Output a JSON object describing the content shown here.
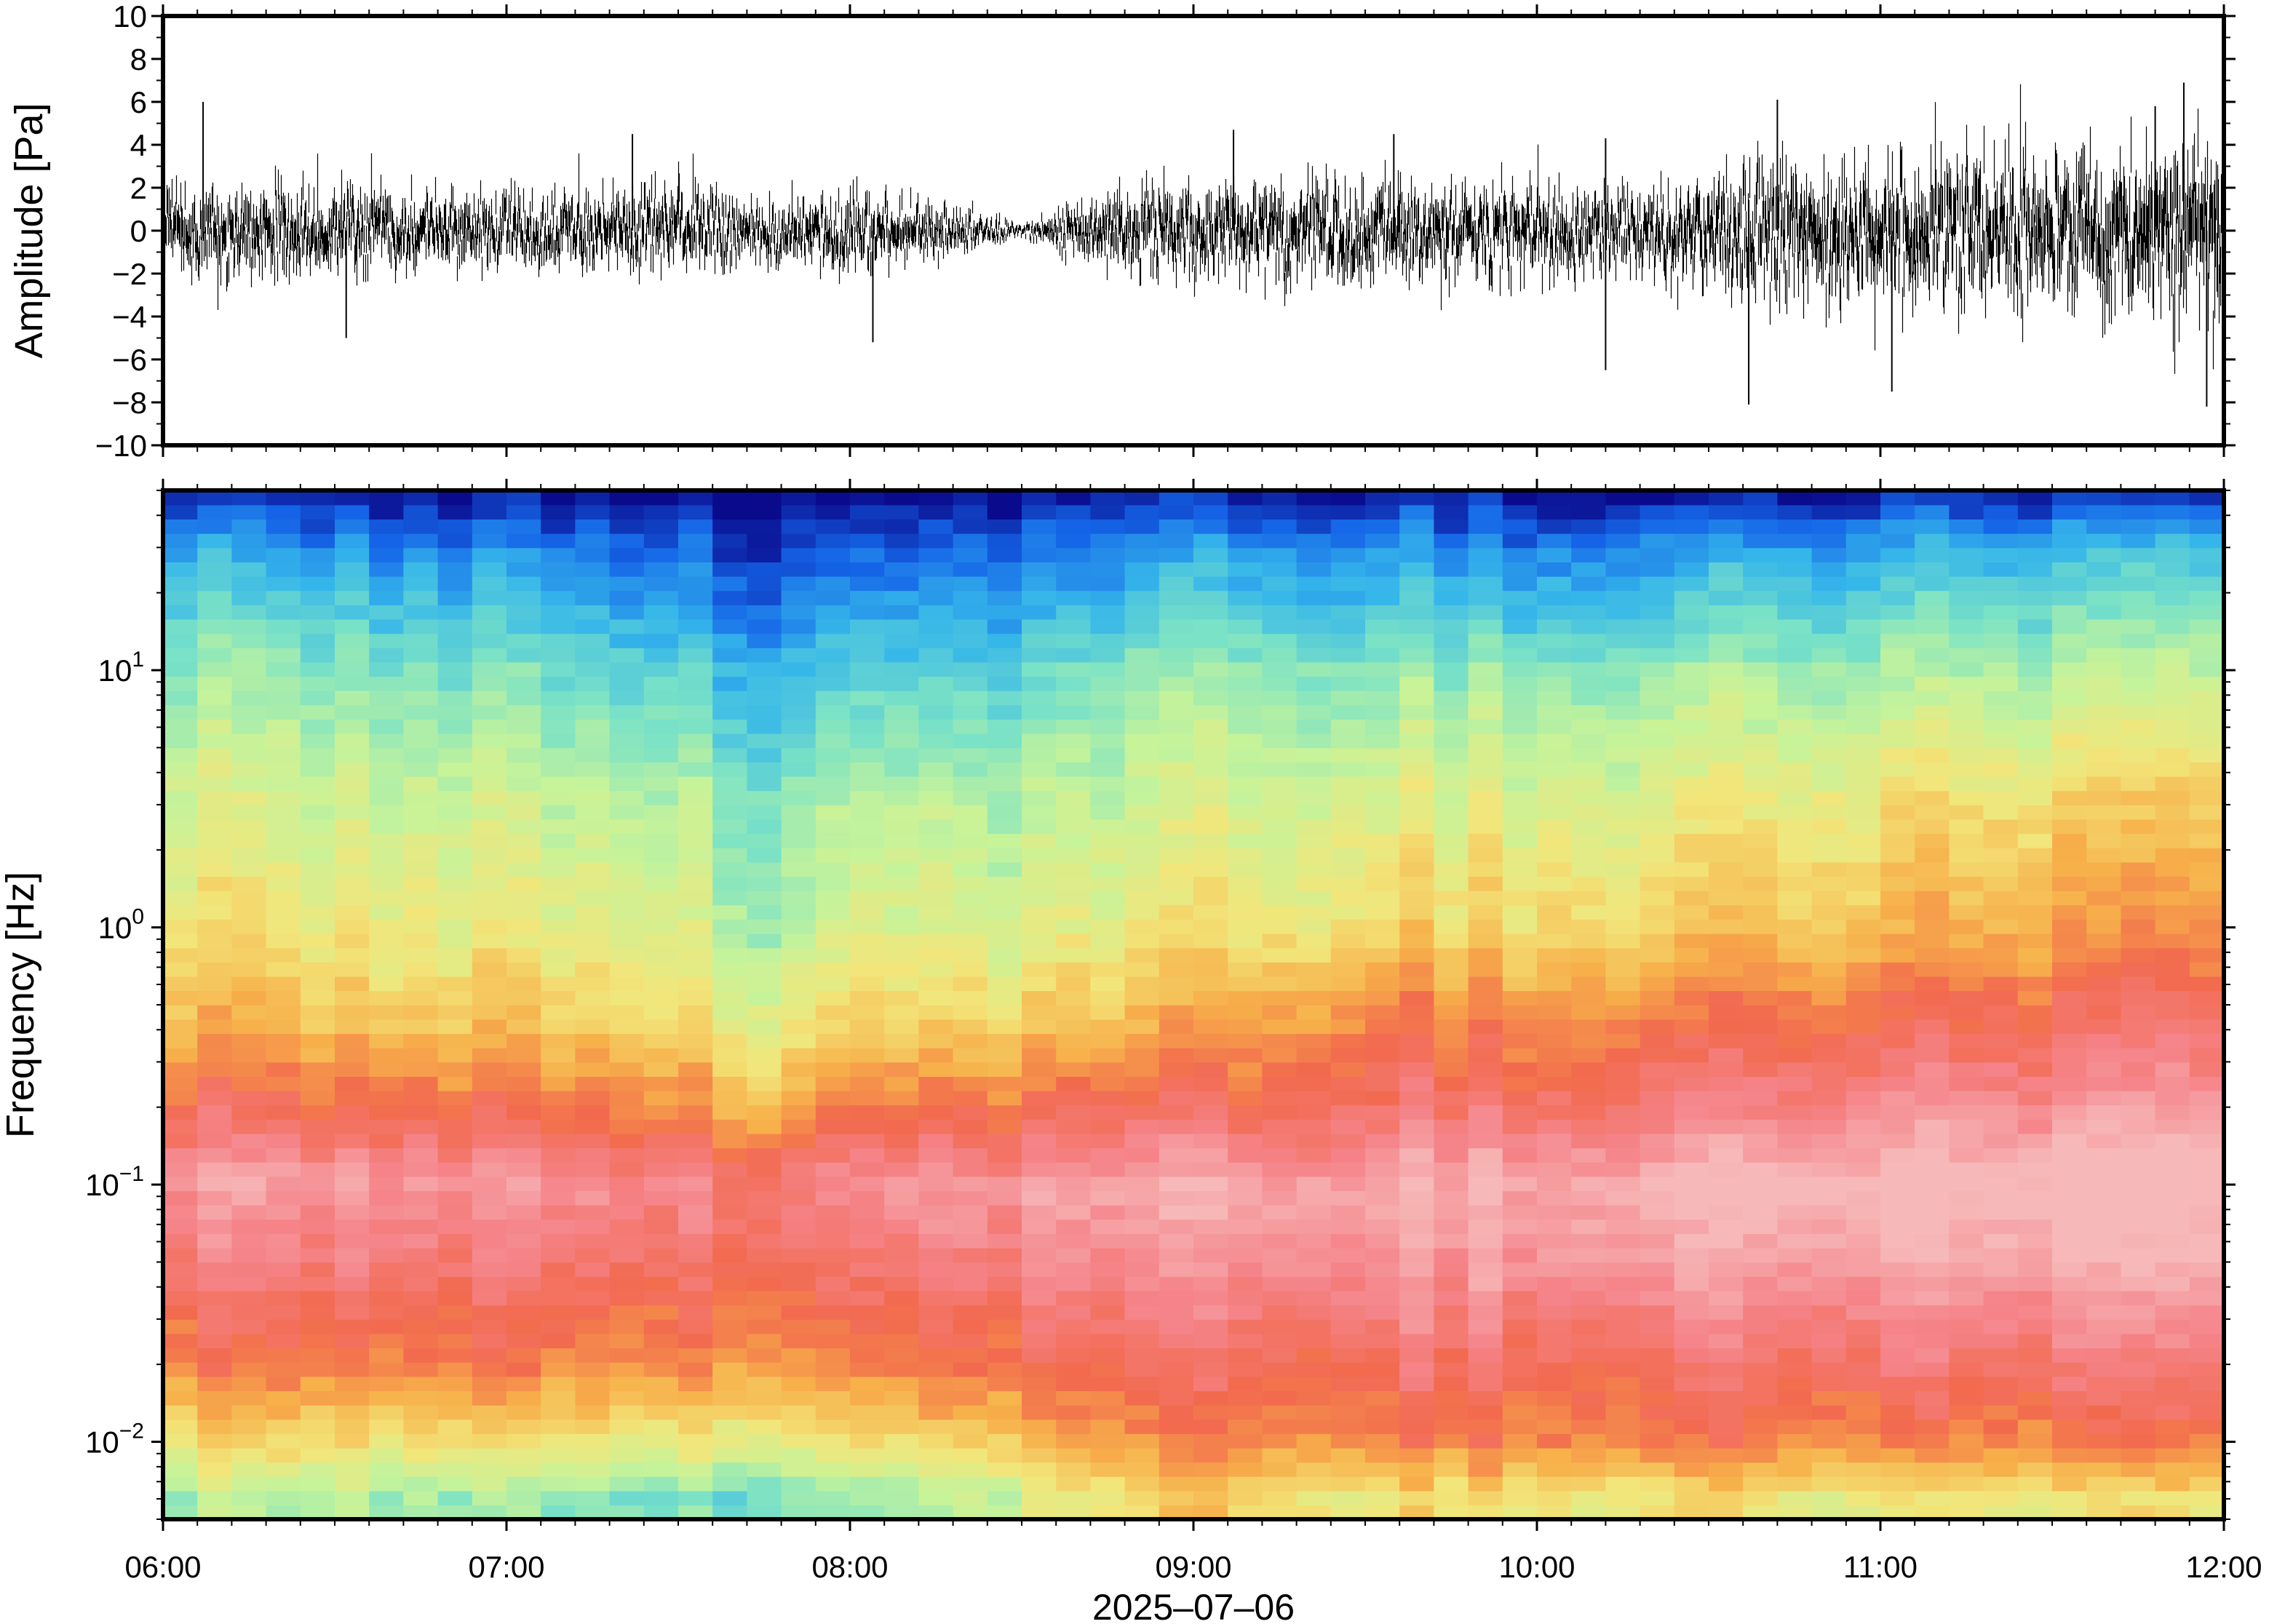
{
  "chart_data": [
    {
      "type": "line",
      "panel": "waveform",
      "ylabel": "Amplitude [Pa]",
      "xlabel": "",
      "ylim": [
        -10,
        10
      ],
      "yticks": [
        -10,
        -8,
        -6,
        -4,
        -2,
        0,
        2,
        4,
        6,
        8,
        10
      ],
      "ytick_labels": [
        "−10",
        "−8",
        "−6",
        "−4",
        "−2",
        "0",
        "2",
        "4",
        "6",
        "8",
        "10"
      ],
      "xlim": [
        "06:00",
        "12:00"
      ],
      "series_color": "#000000",
      "envelope": {
        "time_hours": [
          6.0,
          6.25,
          6.5,
          6.75,
          7.0,
          7.25,
          7.5,
          7.75,
          8.0,
          8.25,
          8.5,
          8.75,
          9.0,
          9.25,
          9.5,
          9.75,
          10.0,
          10.25,
          10.5,
          10.75,
          11.0,
          11.25,
          11.5,
          11.75,
          12.0
        ],
        "typical_amplitude_pa": [
          1.2,
          1.3,
          1.2,
          1.1,
          1.0,
          1.1,
          1.2,
          0.8,
          1.1,
          0.8,
          0.2,
          1.1,
          1.3,
          1.4,
          1.4,
          1.3,
          1.3,
          1.1,
          1.6,
          1.9,
          1.9,
          2.0,
          2.1,
          2.4,
          2.5
        ]
      },
      "notable_peaks": [
        {
          "time": "06:07",
          "value": 6.0
        },
        {
          "time": "06:32",
          "value": -5.0
        },
        {
          "time": "07:22",
          "value": 4.5
        },
        {
          "time": "08:04",
          "value": -5.2
        },
        {
          "time": "09:07",
          "value": 4.7
        },
        {
          "time": "09:35",
          "value": 4.5
        },
        {
          "time": "10:12",
          "value": 4.3
        },
        {
          "time": "10:12",
          "value": -6.5
        },
        {
          "time": "10:37",
          "value": -8.1
        },
        {
          "time": "10:42",
          "value": 6.1
        },
        {
          "time": "11:02",
          "value": -7.5
        },
        {
          "time": "11:48",
          "value": 5.8
        },
        {
          "time": "11:53",
          "value": 6.9
        },
        {
          "time": "11:57",
          "value": -8.2
        }
      ]
    },
    {
      "type": "heatmap",
      "panel": "spectrogram",
      "ylabel": "Frequency [Hz]",
      "xlabel": "2025–07–06",
      "yscale": "log",
      "ylim": [
        0.005,
        50
      ],
      "yticks": [
        0.01,
        0.1,
        1,
        10
      ],
      "ytick_labels": [
        {
          "base": "10",
          "exp": "−2"
        },
        {
          "base": "10",
          "exp": "−1"
        },
        {
          "base": "10",
          "exp": "0"
        },
        {
          "base": "10",
          "exp": "1"
        }
      ],
      "xticks": [
        "06:00",
        "07:00",
        "08:00",
        "09:00",
        "10:00",
        "11:00",
        "12:00"
      ],
      "colormap": [
        "#0a0a8c",
        "#1565e8",
        "#35b6ea",
        "#7ae2c6",
        "#c6f39a",
        "#f2e67a",
        "#f7b04a",
        "#f26a4e",
        "#f5848a",
        "#f6b8b8"
      ],
      "time_bins_hours": [
        6.0,
        6.5,
        7.0,
        7.5,
        7.75,
        8.0,
        8.5,
        9.0,
        9.5,
        10.0,
        10.5,
        11.0,
        11.5,
        12.0
      ],
      "freq_bins_hz": [
        0.006,
        0.01,
        0.02,
        0.05,
        0.1,
        0.2,
        0.4,
        1,
        3,
        10,
        30,
        48
      ],
      "level_index": [
        [
          3.6,
          5.2,
          6.6,
          7.6,
          8.4,
          7.2,
          6.0,
          5.0,
          4.4,
          3.4,
          1.8,
          0.4
        ],
        [
          3.8,
          5.3,
          6.8,
          7.8,
          8.5,
          7.1,
          5.8,
          4.9,
          4.3,
          3.3,
          1.6,
          0.3
        ],
        [
          3.5,
          5.1,
          6.7,
          7.7,
          8.4,
          7.0,
          5.7,
          4.8,
          4.2,
          3.1,
          1.4,
          0.2
        ],
        [
          3.2,
          5.0,
          6.6,
          7.6,
          8.2,
          6.8,
          5.6,
          4.6,
          4.0,
          2.8,
          1.2,
          0.1
        ],
        [
          3.0,
          4.8,
          6.4,
          7.3,
          7.8,
          5.8,
          4.8,
          3.6,
          3.2,
          2.0,
          0.6,
          0.0
        ],
        [
          3.4,
          5.0,
          6.6,
          7.6,
          8.3,
          6.8,
          5.5,
          4.5,
          3.9,
          2.6,
          1.0,
          0.1
        ],
        [
          4.2,
          5.6,
          6.9,
          7.8,
          8.4,
          6.8,
          5.4,
          4.3,
          3.7,
          2.5,
          0.9,
          0.0
        ],
        [
          5.6,
          6.6,
          7.4,
          8.3,
          8.8,
          7.3,
          6.2,
          5.0,
          4.4,
          3.5,
          1.7,
          0.3
        ],
        [
          5.0,
          6.6,
          7.4,
          8.4,
          8.8,
          7.5,
          6.8,
          5.3,
          4.6,
          3.4,
          1.6,
          0.3
        ],
        [
          5.1,
          6.8,
          7.4,
          8.5,
          8.9,
          7.6,
          6.8,
          5.4,
          4.6,
          3.3,
          1.5,
          0.2
        ],
        [
          5.0,
          6.7,
          7.4,
          8.6,
          9.1,
          7.9,
          7.0,
          5.6,
          4.8,
          3.5,
          1.7,
          0.3
        ],
        [
          4.8,
          6.6,
          7.5,
          8.7,
          9.3,
          8.1,
          7.2,
          5.8,
          5.0,
          3.6,
          1.8,
          0.4
        ],
        [
          4.9,
          6.7,
          7.6,
          8.8,
          9.4,
          8.3,
          7.4,
          6.2,
          5.3,
          3.8,
          2.0,
          0.5
        ],
        [
          5.0,
          6.7,
          7.6,
          8.8,
          9.4,
          8.4,
          7.5,
          6.4,
          5.5,
          4.0,
          2.2,
          0.6
        ]
      ],
      "features": [
        {
          "time": "07:45",
          "note": "dip"
        },
        {
          "time": "08:30",
          "note": "dip"
        }
      ]
    }
  ]
}
